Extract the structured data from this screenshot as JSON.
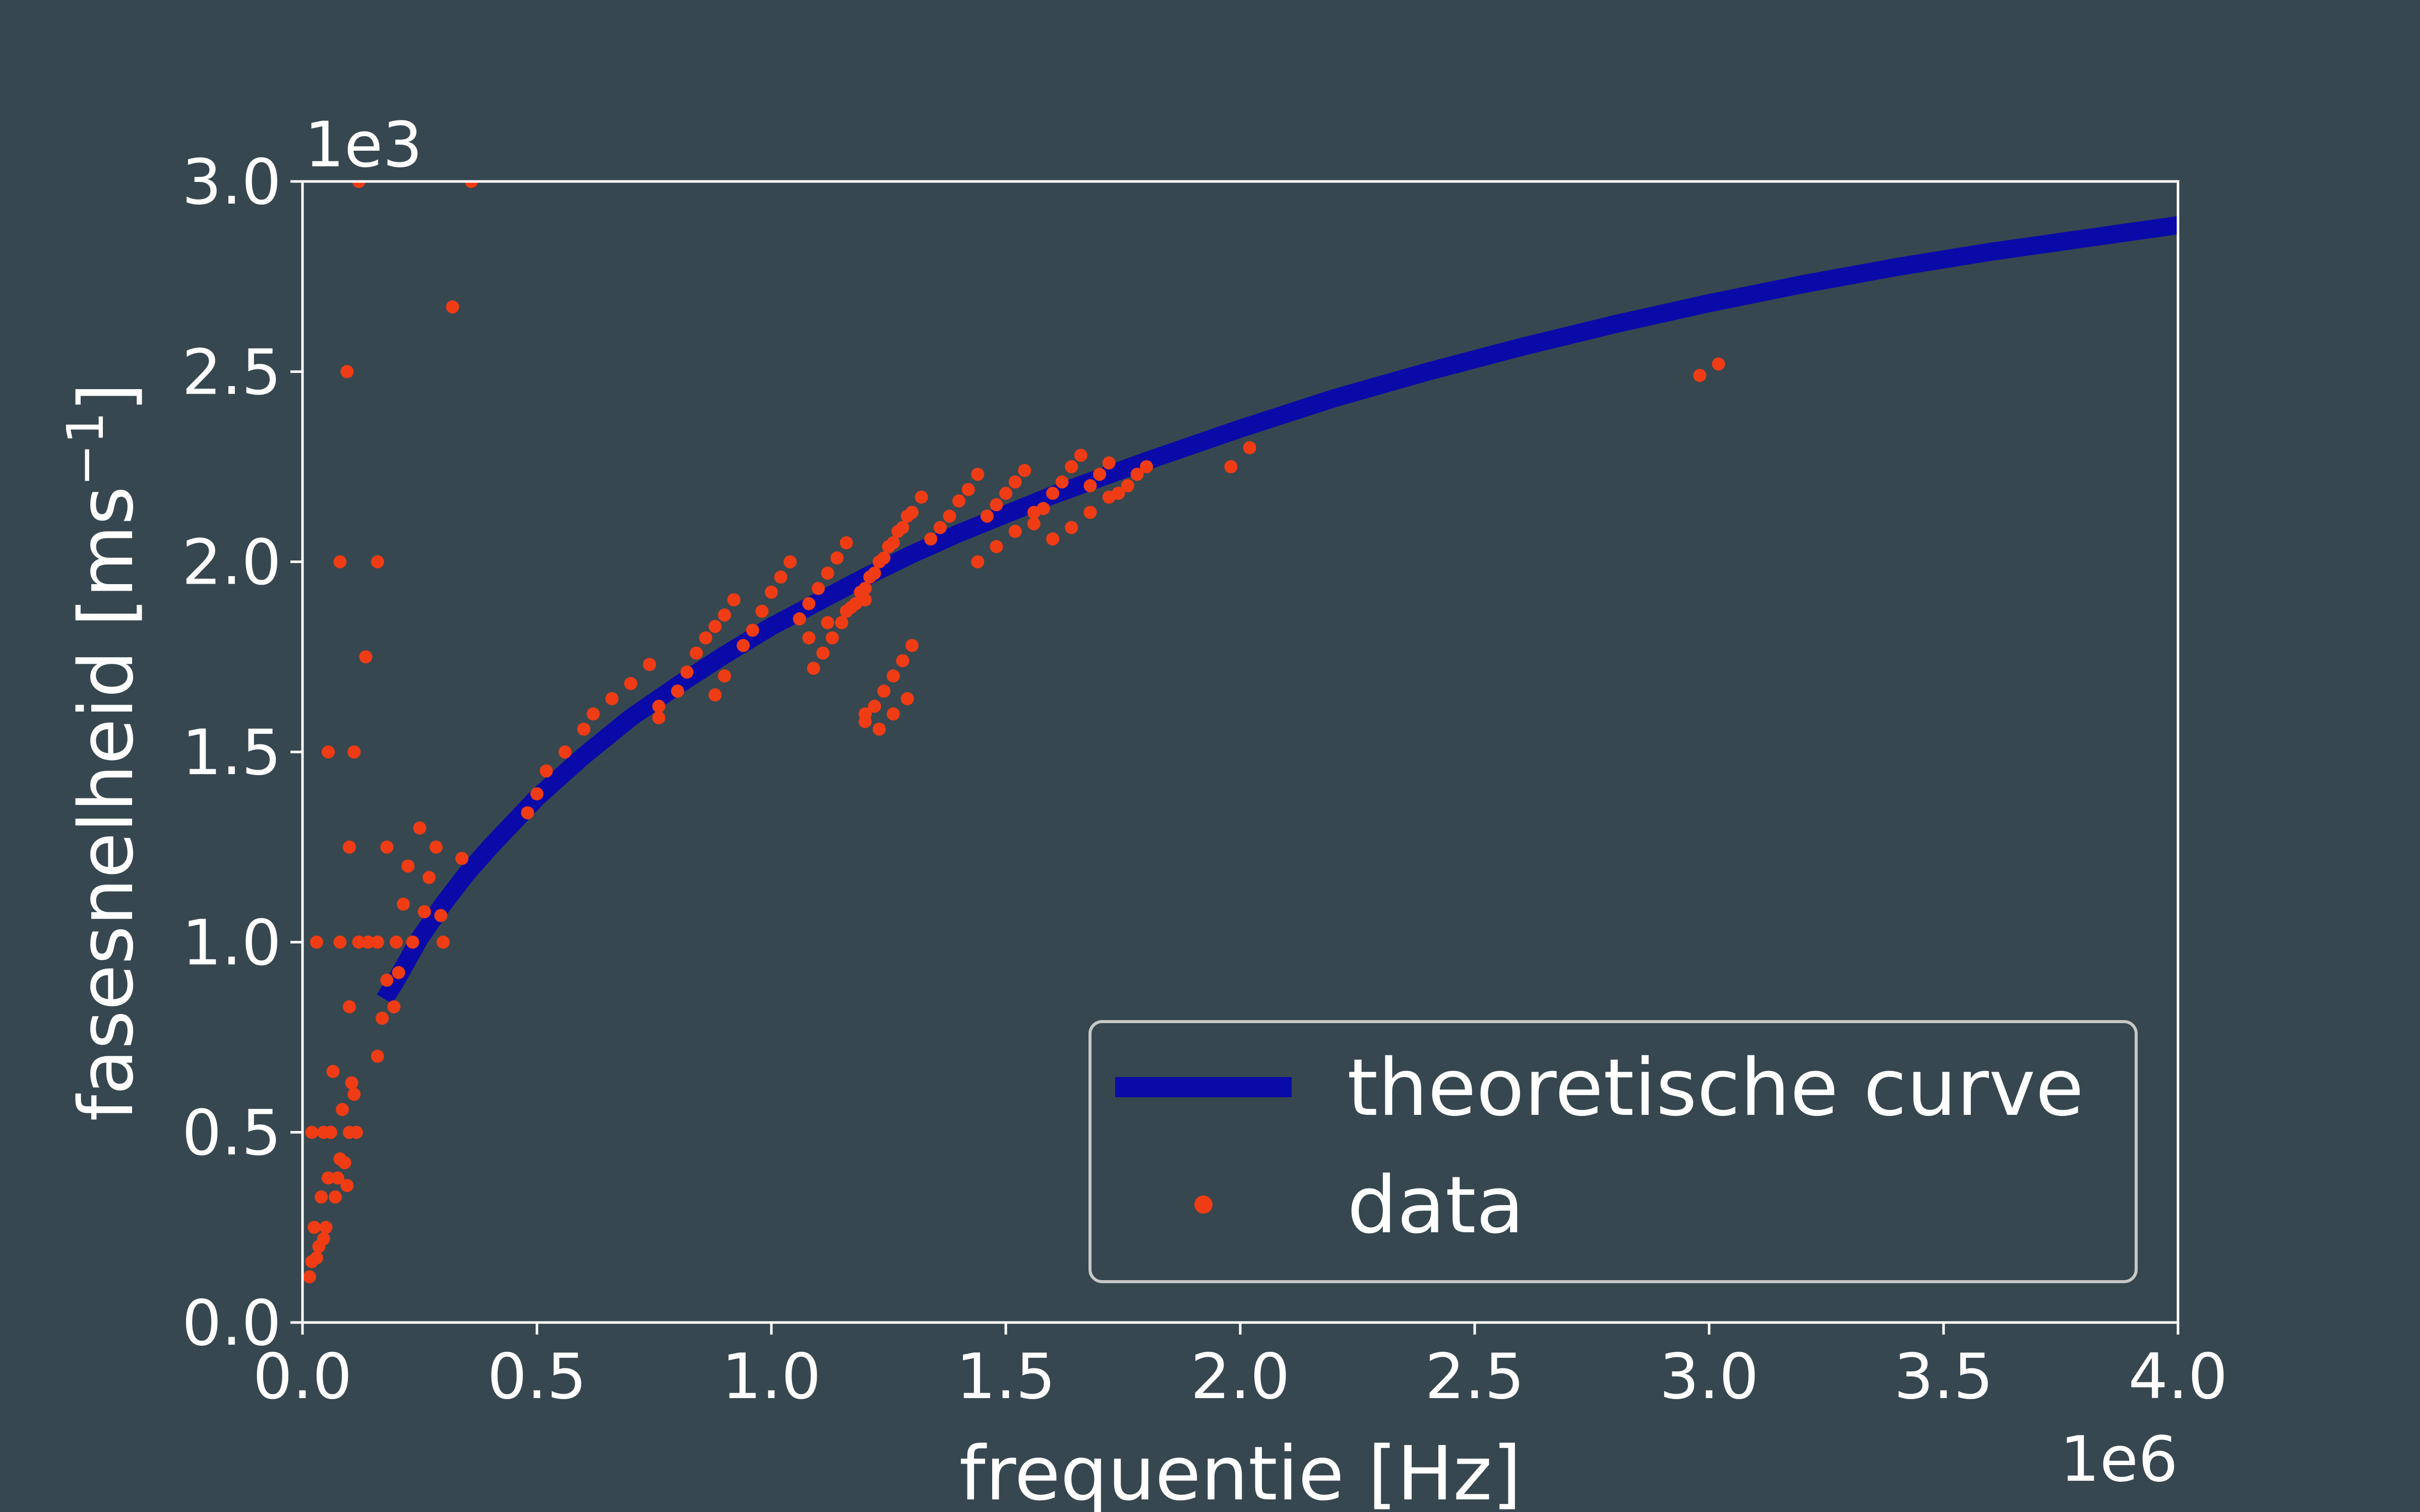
{
  "colors": {
    "background": "#37474f",
    "axes": "#ffffff",
    "curve": "#0a0aa8",
    "points": "#f03c14",
    "legend_border": "#c8c8c8"
  },
  "chart_data": {
    "type": "scatter",
    "title": "",
    "xlabel": "frequentie [Hz]",
    "ylabel": "fasesnelheid [ms",
    "ylabel_superscript": "−1",
    "ylabel_close": "]",
    "x_multiplier_label": "1e6",
    "y_multiplier_label": "1e3",
    "x_scale": 1000000,
    "y_scale": 1000,
    "xlim": [
      0,
      4000000
    ],
    "ylim": [
      0,
      3000
    ],
    "x_ticks": [
      0,
      500000,
      1000000,
      1500000,
      2000000,
      2500000,
      3000000,
      3500000,
      4000000
    ],
    "x_tick_labels": [
      "0.0",
      "0.5",
      "1.0",
      "1.5",
      "2.0",
      "2.5",
      "3.0",
      "3.5",
      "4.0"
    ],
    "y_ticks": [
      0,
      500,
      1000,
      1500,
      2000,
      2500,
      3000
    ],
    "y_tick_labels": [
      "0.0",
      "0.5",
      "1.0",
      "1.5",
      "2.0",
      "2.5",
      "3.0"
    ],
    "grid": false,
    "legend_position": "lower-right",
    "series": [
      {
        "name": "theoretische curve",
        "kind": "line",
        "x": [
          175000,
          200000,
          250000,
          300000,
          350000,
          400000,
          500000,
          600000,
          700000,
          800000,
          900000,
          1000000,
          1100000,
          1200000,
          1300000,
          1400000,
          1500000,
          1600000,
          1700000,
          1800000,
          2000000,
          2200000,
          2400000,
          2600000,
          2800000,
          3000000,
          3200000,
          3400000,
          3600000,
          3800000,
          4000000
        ],
        "y": [
          850,
          900,
          1010,
          1100,
          1180,
          1250,
          1380,
          1490,
          1590,
          1675,
          1755,
          1830,
          1895,
          1960,
          2020,
          2075,
          2125,
          2175,
          2220,
          2265,
          2350,
          2430,
          2500,
          2565,
          2625,
          2680,
          2730,
          2775,
          2815,
          2850,
          2885
        ]
      },
      {
        "name": "data",
        "kind": "scatter",
        "x": [
          15000,
          20000,
          25000,
          30000,
          35000,
          40000,
          45000,
          50000,
          55000,
          60000,
          65000,
          70000,
          75000,
          80000,
          85000,
          90000,
          95000,
          100000,
          100000,
          105000,
          110000,
          115000,
          20000,
          30000,
          45000,
          60000,
          80000,
          100000,
          120000,
          140000,
          160000,
          180000,
          200000,
          55000,
          95000,
          110000,
          120000,
          135000,
          160000,
          170000,
          180000,
          195000,
          205000,
          215000,
          225000,
          235000,
          250000,
          260000,
          270000,
          285000,
          295000,
          300000,
          340000,
          320000,
          360000,
          100000,
          120000,
          80000,
          160000,
          480000,
          500000,
          520000,
          560000,
          600000,
          620000,
          660000,
          700000,
          740000,
          760000,
          800000,
          820000,
          840000,
          860000,
          880000,
          900000,
          920000,
          940000,
          960000,
          980000,
          1000000,
          1020000,
          1040000,
          1060000,
          1080000,
          1100000,
          1120000,
          1140000,
          1160000,
          1180000,
          1200000,
          1220000,
          1240000,
          1260000,
          1280000,
          1300000,
          1320000,
          1340000,
          1360000,
          1380000,
          1400000,
          1420000,
          1440000,
          1460000,
          1480000,
          1500000,
          1520000,
          1540000,
          1560000,
          1580000,
          1600000,
          1620000,
          1640000,
          1660000,
          1680000,
          1700000,
          1720000,
          1740000,
          1760000,
          1780000,
          1800000,
          1090000,
          1110000,
          1130000,
          1150000,
          1170000,
          1190000,
          1210000,
          1230000,
          1250000,
          1270000,
          1290000,
          1200000,
          1220000,
          1240000,
          1260000,
          1280000,
          1300000,
          1200000,
          1230000,
          1260000,
          1290000,
          1440000,
          1480000,
          1520000,
          1560000,
          1600000,
          1640000,
          1680000,
          1720000,
          1080000,
          1120000,
          1160000,
          1200000,
          1980000,
          2020000,
          2980000,
          3020000,
          880000,
          760000,
          900000
        ],
        "y": [
          120,
          160,
          250,
          170,
          200,
          330,
          220,
          250,
          380,
          500,
          660,
          330,
          380,
          430,
          560,
          420,
          360,
          500,
          830,
          630,
          600,
          500,
          500,
          1000,
          500,
          500,
          1000,
          1250,
          1000,
          1000,
          1000,
          1250,
          1000,
          1500,
          2500,
          1500,
          3000,
          1750,
          2000,
          800,
          900,
          830,
          920,
          1100,
          1200,
          1000,
          1300,
          1080,
          1170,
          1250,
          1070,
          1000,
          1220,
          2670,
          3000,
          1250,
          1000,
          2000,
          700,
          1340,
          1390,
          1450,
          1500,
          1560,
          1600,
          1640,
          1680,
          1730,
          1590,
          1660,
          1710,
          1760,
          1800,
          1830,
          1860,
          1900,
          1780,
          1820,
          1870,
          1920,
          1960,
          2000,
          1850,
          1890,
          1930,
          1970,
          2010,
          2050,
          1890,
          1930,
          1970,
          2010,
          2050,
          2090,
          2130,
          2170,
          2060,
          2090,
          2120,
          2160,
          2190,
          2230,
          2120,
          2150,
          2180,
          2210,
          2240,
          2100,
          2140,
          2180,
          2210,
          2250,
          2280,
          2200,
          2230,
          2260,
          2180,
          2200,
          2230,
          2250,
          1720,
          1760,
          1800,
          1840,
          1880,
          1920,
          1960,
          2000,
          2040,
          2080,
          2120,
          1580,
          1620,
          1660,
          1700,
          1740,
          1780,
          1600,
          1560,
          1600,
          1640,
          2000,
          2040,
          2080,
          2130,
          2060,
          2090,
          2130,
          2170,
          1800,
          1840,
          1870,
          1900,
          2250,
          2300,
          2490,
          2520,
          1650,
          1620,
          1700
        ]
      }
    ]
  }
}
